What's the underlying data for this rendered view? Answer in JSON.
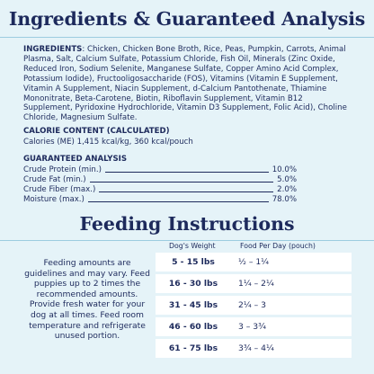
{
  "ingredients_title": "Ingredients & Guaranteed Analysis",
  "ingredients_label": "INGREDIENTS",
  "ingredients_text": ": Chicken, Chicken Bone Broth, Rice, Peas, Pumpkin, Carrots, Animal Plasma, Salt, Calcium Sulfate, Potassium Chloride, Fish Oil, Minerals (Zinc Oxide, Reduced Iron, Sodium Selenite, Manganese Sulfate, Copper Amino Acid Complex, Potassium Iodide), Fructooligosaccharide (FOS), Vitamins (Vitamin E Supplement, Vitamin A Supplement, Niacin Supplement, d-Calcium Pantothenate, Thiamine Mononitrate, Beta-Carotene, Biotin, Riboflavin Supplement, Vitamin B12 Supplement, Pyridoxine Hydrochloride, Vitamin D3 Supplement, Folic Acid), Choline Chloride, Magnesium Sulfate.",
  "calorie_heading": "CALORIE CONTENT (CALCULATED)",
  "calorie_text": "Calories (ME) 1,415 kcal/kg, 360 kcal/pouch",
  "ga_heading": "GUARANTEED ANALYSIS",
  "guaranteed_analysis": [
    {
      "label": "Crude Protein (min.)",
      "value": "10.0%"
    },
    {
      "label": "Crude Fat (min.)",
      "value": "5.0%"
    },
    {
      "label": "Crude Fiber (max.)",
      "value": "2.0%"
    },
    {
      "label": "Moisture (max.)",
      "value": "78.0%"
    }
  ],
  "feeding_title": "Feeding Instructions",
  "feeding_text": "Feeding amounts are guidelines and may vary. Feed puppies up to 2 times the recommended amounts. Provide fresh water for your dog at all times. Feed room temperature and refrigerate unused portion.",
  "table_headers": {
    "weight": "Dog's Weight",
    "food": "Food Per Day (pouch)"
  },
  "feeding_rows": [
    {
      "weight": "5 - 15 lbs",
      "food": "½ – 1¼"
    },
    {
      "weight": "16 - 30 lbs",
      "food": "1¼ – 2¼"
    },
    {
      "weight": "31 - 45 lbs",
      "food": "2¼ – 3"
    },
    {
      "weight": "46 - 60 lbs",
      "food": "3 – 3¾"
    },
    {
      "weight": "61 - 75 lbs",
      "food": "3¾ – 4¼"
    }
  ]
}
